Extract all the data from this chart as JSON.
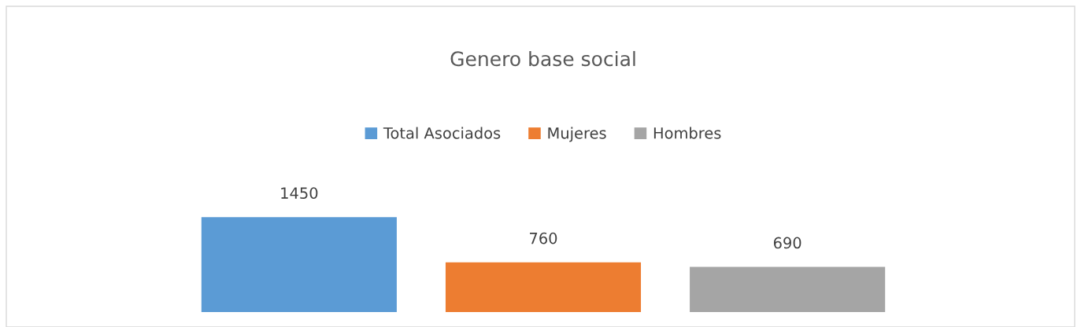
{
  "chart_data": {
    "type": "bar",
    "title": "Genero base social",
    "categories": [
      null
    ],
    "series": [
      {
        "name": "Total Asociados",
        "color": "#5b9bd5",
        "values": [
          1450
        ]
      },
      {
        "name": "Mujeres",
        "color": "#ed7d31",
        "values": [
          760
        ]
      },
      {
        "name": "Hombres",
        "color": "#a5a5a5",
        "values": [
          690
        ]
      }
    ],
    "data_labels": true,
    "legend": "top"
  }
}
